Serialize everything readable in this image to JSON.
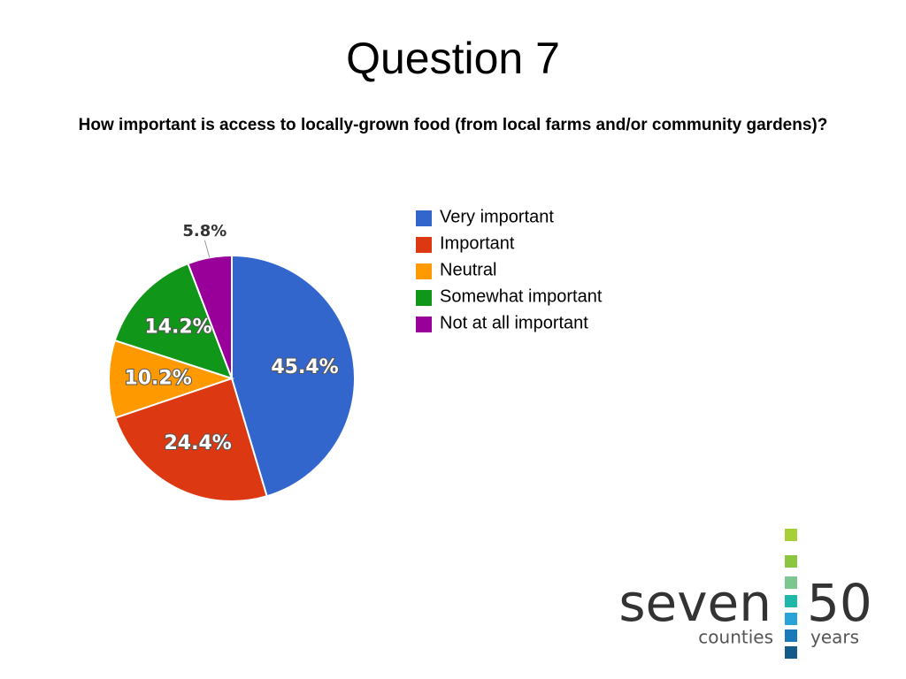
{
  "chart_data": {
    "type": "pie",
    "title": "Question 7",
    "subtitle": "How important is access to locally-grown food (from local farms and/or community gardens)?",
    "categories": [
      "Very important",
      "Important",
      "Neutral",
      "Somewhat important",
      "Not at all important"
    ],
    "values": [
      45.4,
      24.4,
      10.2,
      14.2,
      5.8
    ],
    "value_labels": [
      "45.4%",
      "24.4%",
      "10.2%",
      "14.2%",
      "5.8%"
    ],
    "colors": [
      "#3366cc",
      "#dc3912",
      "#ff9900",
      "#109618",
      "#990099"
    ],
    "legend": "right"
  },
  "logo": {
    "name": "seven",
    "sub": "counties",
    "number": "50",
    "unit": "years"
  }
}
